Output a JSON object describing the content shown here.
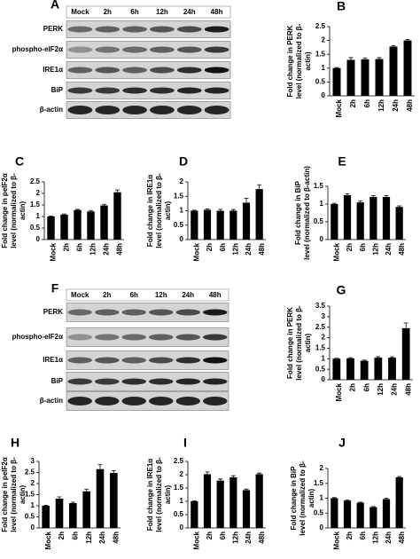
{
  "blots": [
    {
      "panel": "A",
      "lanes": [
        "Mock",
        "2h",
        "6h",
        "12h",
        "24h",
        "48h"
      ],
      "rows": [
        "PERK",
        "phospho-eIF2α",
        "IRE1α",
        "BiP",
        "β-actin"
      ]
    },
    {
      "panel": "F",
      "lanes": [
        "Mock",
        "2h",
        "6h",
        "12h",
        "24h",
        "48h"
      ],
      "rows": [
        "PERK",
        "phospho-eIF2α",
        "IRE1α",
        "BiP",
        "β-actin"
      ]
    }
  ],
  "chart_data": [
    {
      "type": "bar",
      "panel": "B",
      "ylabel": [
        "Fold change in PERK",
        "level (normalized to β-",
        "actin)"
      ],
      "categories": [
        "Mock",
        "2h",
        "6h",
        "12h",
        "24h",
        "48h"
      ],
      "values": [
        1,
        1.3,
        1.32,
        1.33,
        1.78,
        2.0
      ],
      "errors": [
        0.02,
        0.08,
        0.05,
        0.05,
        0.04,
        0.04
      ],
      "ylim": [
        0,
        2.5
      ],
      "yticks": [
        0,
        0.5,
        1,
        1.5,
        2,
        2.5
      ],
      "color": "#000000"
    },
    {
      "type": "bar",
      "panel": "C",
      "ylabel": [
        "Fold change in peIF2α",
        "level (normalized to β-",
        "actin)"
      ],
      "categories": [
        "Mock",
        "2h",
        "6h",
        "12h",
        "24h",
        "48h"
      ],
      "values": [
        1,
        1.08,
        1.28,
        1.22,
        1.48,
        2.05
      ],
      "errors": [
        0.02,
        0.03,
        0.03,
        0.04,
        0.05,
        0.1
      ],
      "ylim": [
        0,
        2.5
      ],
      "yticks": [
        0,
        0.5,
        1,
        1.5,
        2,
        2.5
      ],
      "color": "#000000"
    },
    {
      "type": "bar",
      "panel": "D",
      "ylabel": [
        "Fold change in IRE1α",
        "level (normalized to β-",
        "actin)"
      ],
      "categories": [
        "Mock",
        "2h",
        "6h",
        "12h",
        "24h",
        "48h"
      ],
      "values": [
        1,
        1.03,
        1.0,
        1.0,
        1.28,
        1.75
      ],
      "errors": [
        0.02,
        0.03,
        0.05,
        0.04,
        0.15,
        0.15
      ],
      "ylim": [
        0,
        2
      ],
      "yticks": [
        0,
        0.5,
        1,
        1.5,
        2
      ],
      "color": "#000000"
    },
    {
      "type": "bar",
      "panel": "E",
      "ylabel": [
        "Fold change in BiP",
        "level (normalized to β-actin)"
      ],
      "categories": [
        "Mock",
        "2h",
        "6h",
        "12h",
        "24h",
        "48h"
      ],
      "values": [
        1,
        1.25,
        1.05,
        1.2,
        1.2,
        0.92
      ],
      "errors": [
        0.02,
        0.04,
        0.04,
        0.04,
        0.04,
        0.03
      ],
      "ylim": [
        0,
        1.5
      ],
      "yticks": [
        0,
        0.5,
        1,
        1.5
      ],
      "color": "#000000"
    },
    {
      "type": "bar",
      "panel": "G",
      "ylabel": [
        "Fold change in PERK",
        "level (normalized to β-",
        "actin)"
      ],
      "categories": [
        "Mock",
        "2h",
        "6h",
        "12h",
        "24h",
        "48h"
      ],
      "values": [
        1,
        1.02,
        0.9,
        1.05,
        1.05,
        2.45
      ],
      "errors": [
        0.02,
        0.03,
        0.03,
        0.05,
        0.04,
        0.25
      ],
      "ylim": [
        0,
        3.5
      ],
      "yticks": [
        0,
        0.5,
        1,
        1.5,
        2,
        2.5,
        3,
        3.5
      ],
      "color": "#000000"
    },
    {
      "type": "bar",
      "panel": "H",
      "ylabel": [
        "Fold change in peIF2α",
        "level (normalized to β-",
        "actin)"
      ],
      "categories": [
        "Mock",
        "2h",
        "6h",
        "12h",
        "24h",
        "48h"
      ],
      "values": [
        1,
        1.32,
        1.12,
        1.65,
        2.65,
        2.48
      ],
      "errors": [
        0.02,
        0.08,
        0.04,
        0.1,
        0.2,
        0.1
      ],
      "ylim": [
        0,
        3
      ],
      "yticks": [
        0,
        0.5,
        1,
        1.5,
        2,
        2.5,
        3
      ],
      "color": "#000000"
    },
    {
      "type": "bar",
      "panel": "I",
      "ylabel": [
        "Fold change in IRE1α",
        "level (normalized to β-",
        "actin)"
      ],
      "categories": [
        "Mock",
        "2h",
        "6h",
        "12h",
        "24h",
        "48h"
      ],
      "values": [
        1,
        2.02,
        1.78,
        1.9,
        1.42,
        2.02
      ],
      "errors": [
        0.02,
        0.08,
        0.06,
        0.06,
        0.04,
        0.04
      ],
      "ylim": [
        0,
        2.5
      ],
      "yticks": [
        0,
        0.5,
        1,
        1.5,
        2,
        2.5
      ],
      "color": "#000000"
    },
    {
      "type": "bar",
      "panel": "J",
      "ylabel": [
        "Fold change in BiP",
        "level (normalized to β-",
        "actin)"
      ],
      "categories": [
        "Mock",
        "2h",
        "6h",
        "12h",
        "24h",
        "48h"
      ],
      "values": [
        1,
        0.92,
        0.85,
        0.7,
        0.97,
        1.7
      ],
      "errors": [
        0.02,
        0.02,
        0.02,
        0.02,
        0.03,
        0.03
      ],
      "ylim": [
        0,
        2
      ],
      "yticks": [
        0,
        0.5,
        1,
        1.5,
        2
      ],
      "color": "#000000"
    }
  ]
}
